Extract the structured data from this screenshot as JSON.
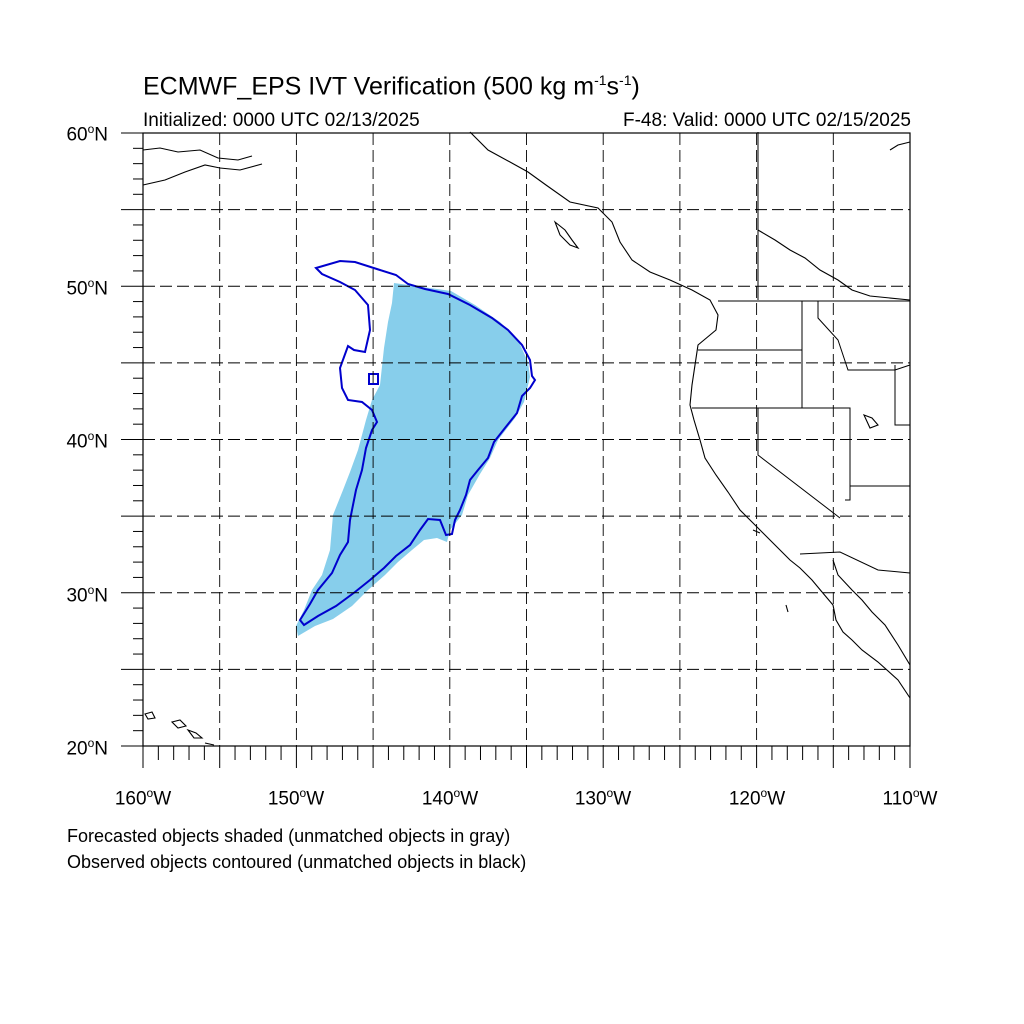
{
  "header": {
    "title_prefix": "ECMWF_EPS IVT Verification (500 kg m",
    "title_exp1": "-1",
    "title_mid": "s",
    "title_exp2": "-1",
    "title_suffix": ")",
    "initialized": "Initialized: 0000 UTC 02/13/2025",
    "valid": "F-48: Valid: 0000 UTC 02/15/2025"
  },
  "axes": {
    "lat_labels": [
      {
        "deg": "60",
        "hemi": "N"
      },
      {
        "deg": "50",
        "hemi": "N"
      },
      {
        "deg": "40",
        "hemi": "N"
      },
      {
        "deg": "30",
        "hemi": "N"
      },
      {
        "deg": "20",
        "hemi": "N"
      }
    ],
    "lon_labels": [
      {
        "deg": "160",
        "hemi": "W"
      },
      {
        "deg": "150",
        "hemi": "W"
      },
      {
        "deg": "140",
        "hemi": "W"
      },
      {
        "deg": "130",
        "hemi": "W"
      },
      {
        "deg": "120",
        "hemi": "W"
      },
      {
        "deg": "110",
        "hemi": "W"
      }
    ],
    "lon_range": [
      -160,
      -110
    ],
    "lat_range": [
      20,
      60
    ],
    "grid_interval_deg": 5
  },
  "colors": {
    "forecast_fill": "#87ceeb",
    "observed_contour": "#0000cd",
    "coast": "#000000"
  },
  "footer": {
    "line1": "Forecasted objects shaded (unmatched objects in gray)",
    "line2": "Observed objects contoured (unmatched objects in black)"
  }
}
